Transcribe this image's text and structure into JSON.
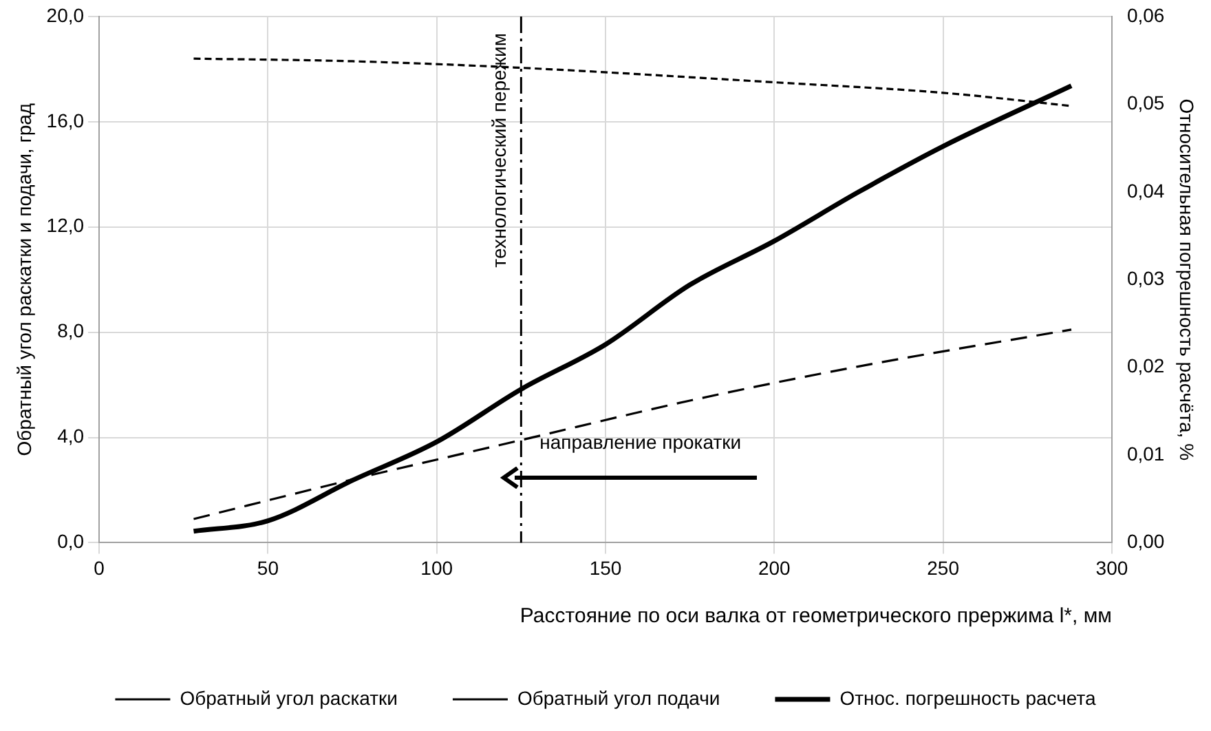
{
  "chart_data": {
    "type": "line",
    "xlabel": "Расстояние по оси валка от геометрического прержима l*, мм",
    "ylabel": "Обратный угол раскатки и подачи, град",
    "y2label": "Относительная погрешность расчёта, %",
    "xlim": [
      0,
      300
    ],
    "xticks": [
      0,
      50,
      100,
      150,
      200,
      250,
      300
    ],
    "ylim": [
      0,
      20
    ],
    "yticks": [
      {
        "value": 0,
        "label": "0,0"
      },
      {
        "value": 4,
        "label": "4,0"
      },
      {
        "value": 8,
        "label": "8,0"
      },
      {
        "value": 12,
        "label": "12,0"
      },
      {
        "value": 16,
        "label": "16,0"
      },
      {
        "value": 20,
        "label": "20,0"
      }
    ],
    "y2lim": [
      0,
      0.06
    ],
    "y2ticks": [
      {
        "value": 0,
        "label": "0,00"
      },
      {
        "value": 0.01,
        "label": "0,01"
      },
      {
        "value": 0.02,
        "label": "0,02"
      },
      {
        "value": 0.03,
        "label": "0,03"
      },
      {
        "value": 0.04,
        "label": "0,04"
      },
      {
        "value": 0.05,
        "label": "0,05"
      },
      {
        "value": 0.06,
        "label": "0,06"
      }
    ],
    "grid": true,
    "legend": "bottom",
    "marker": "none",
    "series": [
      {
        "name": "Обратный угол раскатки",
        "color": "#000000",
        "line_style": "dashed",
        "x": [
          28,
          75,
          125,
          175,
          225,
          288
        ],
        "values": [
          0.9,
          2.4,
          3.9,
          5.4,
          6.7,
          8.1
        ]
      },
      {
        "name": "Обратный угол подачи",
        "color": "#000000",
        "line_style": "dotted",
        "x": [
          28,
          75,
          125,
          200,
          250,
          288
        ],
        "values": [
          18.4,
          18.3,
          18.05,
          17.5,
          17.1,
          16.6
        ]
      },
      {
        "name": "Относ. погрешность расчета",
        "color": "#000000",
        "line_style": "solid",
        "axis": "y2",
        "x": [
          28,
          50,
          75,
          100,
          125,
          150,
          175,
          200,
          225,
          250,
          288
        ],
        "values": [
          0.0013,
          0.0025,
          0.0071,
          0.0115,
          0.0175,
          0.0226,
          0.0294,
          0.0344,
          0.04,
          0.0452,
          0.0521
        ]
      }
    ],
    "ref_lines": [
      {
        "axis": "x",
        "value": 125,
        "label": "технологический пережим",
        "color": "#000000",
        "line_style": "dashdot"
      }
    ],
    "annotations": [
      "направление прокатки"
    ]
  }
}
